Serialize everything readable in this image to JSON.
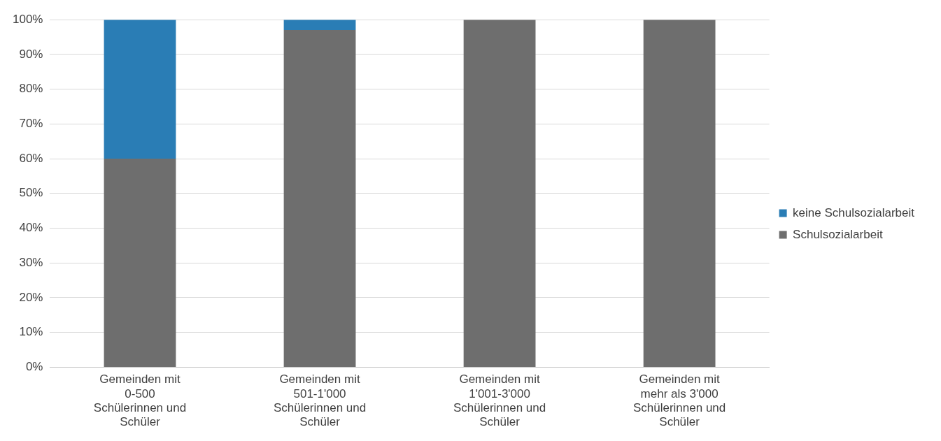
{
  "chart_data": {
    "type": "bar",
    "stacked": true,
    "categories": [
      "Gemeinden mit 0-500 Schülerinnen und Schüler",
      "Gemeinden mit 501-1'000 Schülerinnen und Schüler",
      "Gemeinden mit 1'001-3'000 Schülerinnen und Schüler",
      "Gemeinden mit mehr als 3'000 Schülerinnen und Schüler"
    ],
    "series": [
      {
        "name": "Schulsozialarbeit",
        "color": "#6e6e6e",
        "values": [
          60,
          97,
          100,
          100
        ]
      },
      {
        "name": "keine Schulsozialarbeit",
        "color": "#2a7db5",
        "values": [
          40,
          3,
          0,
          0
        ]
      }
    ],
    "ylim": [
      0,
      100
    ],
    "yticks": [
      {
        "value": 0,
        "label": "0%"
      },
      {
        "value": 10,
        "label": "10%"
      },
      {
        "value": 20,
        "label": "20%"
      },
      {
        "value": 30,
        "label": "30%"
      },
      {
        "value": 40,
        "label": "40%"
      },
      {
        "value": 50,
        "label": "50%"
      },
      {
        "value": 60,
        "label": "60%"
      },
      {
        "value": 70,
        "label": "70%"
      },
      {
        "value": 80,
        "label": "80%"
      },
      {
        "value": 90,
        "label": "90%"
      },
      {
        "value": 100,
        "label": "100%"
      }
    ],
    "grid": "y",
    "legend": "right"
  }
}
